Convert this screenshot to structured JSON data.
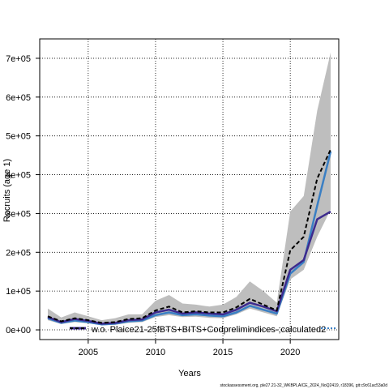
{
  "chart_data": {
    "type": "line",
    "xlabel": "Years",
    "ylabel": "Recruits (age 1)",
    "xlim": [
      2001.4,
      2023.6
    ],
    "ylim": [
      -25000,
      750000
    ],
    "x_ticks": [
      2005,
      2010,
      2015,
      2020
    ],
    "x_tick_labels": [
      "2005",
      "2010",
      "2015",
      "2020"
    ],
    "y_ticks": [
      0,
      100000,
      200000,
      300000,
      400000,
      500000,
      600000,
      700000
    ],
    "y_tick_labels": [
      "0e+00",
      "1e+05",
      "2e+05",
      "3e+05",
      "4e+05",
      "5e+05",
      "6e+05",
      "7e+05"
    ],
    "grid": true,
    "legend_position": "bottom",
    "legend_entries": [
      "w.o. Plaice21-25fBTS+BITS+Codprelimindices-;calculated2"
    ],
    "x": [
      2002,
      2003,
      2004,
      2005,
      2006,
      2007,
      2008,
      2009,
      2010,
      2011,
      2012,
      2013,
      2014,
      2015,
      2016,
      2017,
      2018,
      2019,
      2020,
      2021,
      2022,
      2023
    ],
    "series": [
      {
        "name": "w.o. Plaice21-25fBTS+BITS+Codprelimindices-;calculated2",
        "style": "dashed",
        "color": "#000000",
        "values": [
          35000,
          22000,
          30000,
          25000,
          18000,
          20000,
          28000,
          30000,
          50000,
          60000,
          45000,
          48000,
          45000,
          45000,
          58000,
          80000,
          65000,
          50000,
          205000,
          240000,
          390000,
          465000
        ]
      },
      {
        "style": "solid",
        "color": "#3d2b8e",
        "values": [
          33000,
          20000,
          28000,
          23000,
          16000,
          18000,
          25000,
          27000,
          45000,
          52000,
          42000,
          45000,
          42000,
          40000,
          52000,
          70000,
          60000,
          48000,
          155000,
          180000,
          285000,
          305000
        ]
      },
      {
        "style": "solid",
        "color": "#3a7fc4",
        "values": [
          30000,
          18000,
          24000,
          20000,
          14000,
          16000,
          22000,
          24000,
          38000,
          45000,
          38000,
          40000,
          37000,
          35000,
          45000,
          62000,
          52000,
          42000,
          145000,
          175000,
          320000,
          460000
        ]
      }
    ],
    "band": {
      "color": "#bebebe",
      "lower": [
        25000,
        15000,
        20000,
        17000,
        12000,
        13000,
        18000,
        20000,
        33000,
        38000,
        33000,
        34000,
        31000,
        30000,
        40000,
        55000,
        45000,
        35000,
        130000,
        155000,
        240000,
        310000
      ],
      "upper": [
        55000,
        32000,
        45000,
        35000,
        25000,
        30000,
        40000,
        40000,
        75000,
        90000,
        68000,
        65000,
        60000,
        65000,
        85000,
        125000,
        100000,
        70000,
        305000,
        345000,
        565000,
        715000
      ]
    }
  },
  "footer": {
    "text": "stockassessment.org, ple27.21-32_WKBPLAICE_2024_NoQ2419, r18396, git:c9c61ac53a0d"
  }
}
